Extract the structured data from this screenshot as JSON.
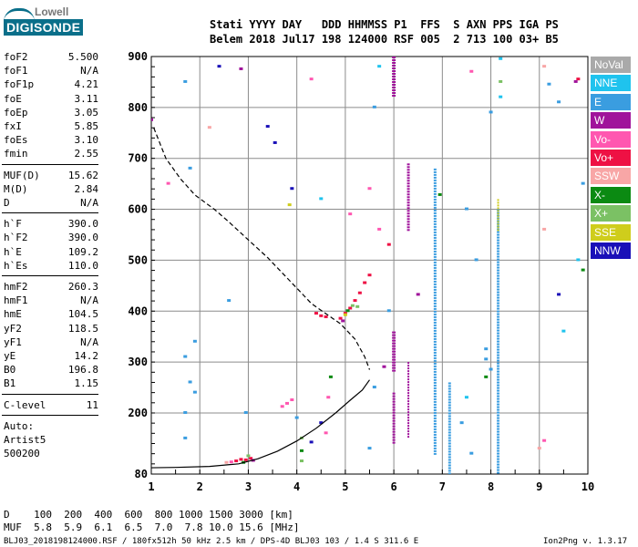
{
  "logo": {
    "line1": "Lowell",
    "line2": "DIGISONDE"
  },
  "header": {
    "line1": "Stati YYYY DAY   DDD HHMMSS P1  FFS  S AXN PPS IGA PS",
    "line2": "Belem 2018 Jul17 198 124000 RSF 005  2 713 100 03+ B5"
  },
  "params": [
    {
      "group": 1,
      "label": "foF2",
      "value": "5.500"
    },
    {
      "group": 1,
      "label": "foF1",
      "value": "N/A"
    },
    {
      "group": 1,
      "label": "foF1p",
      "value": "4.21"
    },
    {
      "group": 1,
      "label": "foE",
      "value": "3.11"
    },
    {
      "group": 1,
      "label": "foEp",
      "value": "3.05"
    },
    {
      "group": 1,
      "label": "fxI",
      "value": "5.85"
    },
    {
      "group": 1,
      "label": "foEs",
      "value": "3.10"
    },
    {
      "group": 1,
      "label": "fmin",
      "value": "2.55"
    },
    {
      "group": 2,
      "label": "MUF(D)",
      "value": "15.62"
    },
    {
      "group": 2,
      "label": "M(D)",
      "value": "2.84"
    },
    {
      "group": 2,
      "label": "D",
      "value": "N/A"
    },
    {
      "group": 3,
      "label": "h`F",
      "value": "390.0"
    },
    {
      "group": 3,
      "label": "h`F2",
      "value": "390.0"
    },
    {
      "group": 3,
      "label": "h`E",
      "value": "109.2"
    },
    {
      "group": 3,
      "label": "h`Es",
      "value": "110.0"
    },
    {
      "group": 4,
      "label": "hmF2",
      "value": "260.3"
    },
    {
      "group": 4,
      "label": "hmF1",
      "value": "N/A"
    },
    {
      "group": 4,
      "label": "hmE",
      "value": "104.5"
    },
    {
      "group": 4,
      "label": "yF2",
      "value": "118.5"
    },
    {
      "group": 4,
      "label": "yF1",
      "value": "N/A"
    },
    {
      "group": 4,
      "label": "yE",
      "value": "14.2"
    },
    {
      "group": 4,
      "label": "B0",
      "value": "196.8"
    },
    {
      "group": 4,
      "label": "B1",
      "value": "1.15"
    },
    {
      "group": 5,
      "label": "C-level",
      "value": "11"
    },
    {
      "group": 6,
      "label": "Auto:",
      "value": ""
    },
    {
      "group": 6,
      "label": "Artist5",
      "value": ""
    },
    {
      "group": 6,
      "label": "500200",
      "value": ""
    }
  ],
  "legend": [
    {
      "label": "NoVal",
      "color": "#a9a9a9"
    },
    {
      "label": "NNE",
      "color": "#1fc3ee"
    },
    {
      "label": "E",
      "color": "#3a9de0"
    },
    {
      "label": "W",
      "color": "#a0139b"
    },
    {
      "label": "Vo-",
      "color": "#ff57b0"
    },
    {
      "label": "Vo+",
      "color": "#ee1144"
    },
    {
      "label": "SSW",
      "color": "#f8a6a6"
    },
    {
      "label": "X-",
      "color": "#0b8a12"
    },
    {
      "label": "X+",
      "color": "#7bc164"
    },
    {
      "label": "SSE",
      "color": "#cfcd1c"
    },
    {
      "label": "NNW",
      "color": "#1a10b8"
    }
  ],
  "bottom": {
    "d_line": "D    100  200  400  600  800 1000 1500 3000 [km]",
    "muf_line": "MUF  5.8  5.9  6.1  6.5  7.0  7.8 10.0 15.6 [MHz]",
    "footer": "BLJ03_2018198124000.RSF / 180fx512h 50 kHz 2.5 km / DPS-4D BLJ03 103 / 1.4 S 311.6 E",
    "version": "Ion2Png v. 1.3.17"
  },
  "chart_data": {
    "type": "scatter",
    "xlabel": "",
    "ylabel": "",
    "xlim": [
      1,
      10
    ],
    "ylim": [
      80,
      900
    ],
    "grid": true,
    "x_ticks": [
      1,
      2,
      3,
      4,
      5,
      6,
      7,
      8,
      9,
      10
    ],
    "x_minor_step": 0.5,
    "y_ticks": [
      80,
      200,
      300,
      400,
      500,
      600,
      700,
      800,
      900
    ],
    "y_minor_step": 20,
    "trace_dashed": [
      [
        1.05,
        760
      ],
      [
        1.3,
        700
      ],
      [
        1.6,
        660
      ],
      [
        1.9,
        628
      ],
      [
        2.3,
        600
      ],
      [
        2.6,
        575
      ],
      [
        3.0,
        540
      ],
      [
        3.4,
        505
      ],
      [
        3.7,
        475
      ],
      [
        4.0,
        445
      ],
      [
        4.3,
        415
      ],
      [
        4.6,
        395
      ],
      [
        4.9,
        375
      ],
      [
        5.2,
        345
      ],
      [
        5.4,
        310
      ],
      [
        5.5,
        285
      ]
    ],
    "trace_solid": [
      [
        0.7,
        92
      ],
      [
        1.5,
        93
      ],
      [
        2.2,
        95
      ],
      [
        2.8,
        100
      ],
      [
        3.2,
        110
      ],
      [
        3.6,
        125
      ],
      [
        4.0,
        145
      ],
      [
        4.4,
        170
      ],
      [
        4.8,
        200
      ],
      [
        5.1,
        225
      ],
      [
        5.35,
        245
      ],
      [
        5.5,
        265
      ]
    ],
    "echo_columns": [
      {
        "x": 6.0,
        "y0": 820,
        "y1": 900,
        "color": "#a0139b",
        "w": 4
      },
      {
        "x": 6.0,
        "y0": 280,
        "y1": 360,
        "color": "#a0139b",
        "w": 4
      },
      {
        "x": 6.0,
        "y0": 140,
        "y1": 240,
        "color": "#a0139b",
        "w": 3
      },
      {
        "x": 6.3,
        "y0": 560,
        "y1": 690,
        "color": "#a0139b",
        "w": 3
      },
      {
        "x": 6.3,
        "y0": 150,
        "y1": 300,
        "color": "#a0139b",
        "w": 2
      },
      {
        "x": 6.85,
        "y0": 120,
        "y1": 680,
        "color": "#3a9de0",
        "w": 3
      },
      {
        "x": 7.15,
        "y0": 80,
        "y1": 260,
        "color": "#3a9de0",
        "w": 3
      },
      {
        "x": 8.15,
        "y0": 80,
        "y1": 600,
        "color": "#3a9de0",
        "w": 3
      },
      {
        "x": 8.15,
        "y0": 560,
        "y1": 620,
        "color": "#cfcd1c",
        "w": 2
      }
    ],
    "echo_points": [
      {
        "x": 2.75,
        "y": 105,
        "c": "#ee1144"
      },
      {
        "x": 2.85,
        "y": 108,
        "c": "#ee1144"
      },
      {
        "x": 2.95,
        "y": 107,
        "c": "#ee1144"
      },
      {
        "x": 2.65,
        "y": 103,
        "c": "#ff57b0"
      },
      {
        "x": 2.55,
        "y": 102,
        "c": "#f8a6a6"
      },
      {
        "x": 3.05,
        "y": 110,
        "c": "#ee1144"
      },
      {
        "x": 3.1,
        "y": 106,
        "c": "#a0139b"
      },
      {
        "x": 2.9,
        "y": 102,
        "c": "#0b8a12"
      },
      {
        "x": 3.0,
        "y": 115,
        "c": "#7bc164"
      },
      {
        "x": 3.7,
        "y": 212,
        "c": "#ff57b0"
      },
      {
        "x": 3.8,
        "y": 218,
        "c": "#ff57b0"
      },
      {
        "x": 3.9,
        "y": 225,
        "c": "#ff57b0"
      },
      {
        "x": 4.4,
        "y": 395,
        "c": "#ee1144"
      },
      {
        "x": 4.5,
        "y": 390,
        "c": "#ee1144"
      },
      {
        "x": 4.6,
        "y": 388,
        "c": "#ee1144"
      },
      {
        "x": 4.9,
        "y": 385,
        "c": "#ee1144"
      },
      {
        "x": 5.0,
        "y": 395,
        "c": "#ee1144"
      },
      {
        "x": 5.1,
        "y": 405,
        "c": "#ee1144"
      },
      {
        "x": 5.2,
        "y": 420,
        "c": "#ee1144"
      },
      {
        "x": 5.3,
        "y": 435,
        "c": "#ee1144"
      },
      {
        "x": 5.4,
        "y": 455,
        "c": "#ee1144"
      },
      {
        "x": 5.5,
        "y": 470,
        "c": "#ee1144"
      },
      {
        "x": 5.05,
        "y": 400,
        "c": "#0b8a12"
      },
      {
        "x": 5.15,
        "y": 410,
        "c": "#7bc164"
      },
      {
        "x": 5.25,
        "y": 408,
        "c": "#7bc164"
      },
      {
        "x": 5.0,
        "y": 392,
        "c": "#cfcd1c"
      },
      {
        "x": 4.95,
        "y": 380,
        "c": "#a0139b"
      },
      {
        "x": 6.5,
        "y": 432,
        "c": "#a0139b"
      },
      {
        "x": 6.95,
        "y": 628,
        "c": "#0b8a12"
      },
      {
        "x": 9.8,
        "y": 855,
        "c": "#ee1144"
      },
      {
        "x": 9.75,
        "y": 850,
        "c": "#a0139b"
      },
      {
        "x": 3.4,
        "y": 762,
        "c": "#1a10b8"
      },
      {
        "x": 3.55,
        "y": 730,
        "c": "#1a10b8"
      },
      {
        "x": 2.4,
        "y": 880,
        "c": "#1a10b8"
      },
      {
        "x": 2.85,
        "y": 875,
        "c": "#a0139b"
      },
      {
        "x": 3.85,
        "y": 608,
        "c": "#cfcd1c"
      },
      {
        "x": 3.9,
        "y": 640,
        "c": "#1a10b8"
      },
      {
        "x": 9.4,
        "y": 432,
        "c": "#1a10b8"
      },
      {
        "x": 9.9,
        "y": 480,
        "c": "#0b8a12"
      },
      {
        "x": 1.0,
        "y": 775,
        "c": "#a0139b"
      },
      {
        "x": 1.35,
        "y": 650,
        "c": "#ff57b0"
      },
      {
        "x": 2.2,
        "y": 760,
        "c": "#f8a6a6"
      },
      {
        "x": 1.7,
        "y": 850,
        "c": "#3a9de0"
      },
      {
        "x": 1.8,
        "y": 680,
        "c": "#3a9de0"
      },
      {
        "x": 1.9,
        "y": 340,
        "c": "#3a9de0"
      },
      {
        "x": 1.7,
        "y": 310,
        "c": "#3a9de0"
      },
      {
        "x": 1.8,
        "y": 260,
        "c": "#3a9de0"
      },
      {
        "x": 1.9,
        "y": 240,
        "c": "#3a9de0"
      },
      {
        "x": 1.7,
        "y": 200,
        "c": "#3a9de0"
      },
      {
        "x": 1.7,
        "y": 150,
        "c": "#3a9de0"
      },
      {
        "x": 2.6,
        "y": 420,
        "c": "#3a9de0"
      },
      {
        "x": 2.95,
        "y": 200,
        "c": "#3a9de0"
      },
      {
        "x": 4.3,
        "y": 855,
        "c": "#ff57b0"
      },
      {
        "x": 4.5,
        "y": 620,
        "c": "#1fc3ee"
      },
      {
        "x": 5.1,
        "y": 590,
        "c": "#ff57b0"
      },
      {
        "x": 5.5,
        "y": 640,
        "c": "#ff57b0"
      },
      {
        "x": 5.7,
        "y": 560,
        "c": "#ff57b0"
      },
      {
        "x": 5.9,
        "y": 530,
        "c": "#ee1144"
      },
      {
        "x": 5.6,
        "y": 800,
        "c": "#3a9de0"
      },
      {
        "x": 5.7,
        "y": 880,
        "c": "#1fc3ee"
      },
      {
        "x": 5.9,
        "y": 400,
        "c": "#3a9de0"
      },
      {
        "x": 5.8,
        "y": 290,
        "c": "#a0139b"
      },
      {
        "x": 5.6,
        "y": 250,
        "c": "#3a9de0"
      },
      {
        "x": 5.5,
        "y": 130,
        "c": "#3a9de0"
      },
      {
        "x": 7.6,
        "y": 870,
        "c": "#ff57b0"
      },
      {
        "x": 7.5,
        "y": 600,
        "c": "#3a9de0"
      },
      {
        "x": 7.7,
        "y": 500,
        "c": "#3a9de0"
      },
      {
        "x": 7.9,
        "y": 325,
        "c": "#3a9de0"
      },
      {
        "x": 7.9,
        "y": 305,
        "c": "#3a9de0"
      },
      {
        "x": 8.0,
        "y": 285,
        "c": "#3a9de0"
      },
      {
        "x": 7.9,
        "y": 270,
        "c": "#0b8a12"
      },
      {
        "x": 7.5,
        "y": 230,
        "c": "#1fc3ee"
      },
      {
        "x": 7.4,
        "y": 180,
        "c": "#3a9de0"
      },
      {
        "x": 7.6,
        "y": 120,
        "c": "#3a9de0"
      },
      {
        "x": 8.2,
        "y": 895,
        "c": "#1fc3ee"
      },
      {
        "x": 8.2,
        "y": 850,
        "c": "#7bc164"
      },
      {
        "x": 8.2,
        "y": 820,
        "c": "#1fc3ee"
      },
      {
        "x": 8.0,
        "y": 790,
        "c": "#3a9de0"
      },
      {
        "x": 9.1,
        "y": 880,
        "c": "#f8a6a6"
      },
      {
        "x": 9.2,
        "y": 845,
        "c": "#3a9de0"
      },
      {
        "x": 9.4,
        "y": 810,
        "c": "#3a9de0"
      },
      {
        "x": 9.9,
        "y": 650,
        "c": "#3a9de0"
      },
      {
        "x": 9.1,
        "y": 560,
        "c": "#f8a6a6"
      },
      {
        "x": 9.8,
        "y": 500,
        "c": "#1fc3ee"
      },
      {
        "x": 9.5,
        "y": 360,
        "c": "#1fc3ee"
      },
      {
        "x": 9.0,
        "y": 130,
        "c": "#f8a6a6"
      },
      {
        "x": 9.1,
        "y": 145,
        "c": "#ff57b0"
      },
      {
        "x": 4.0,
        "y": 190,
        "c": "#3a9de0"
      },
      {
        "x": 4.1,
        "y": 125,
        "c": "#0b8a12"
      },
      {
        "x": 4.1,
        "y": 105,
        "c": "#7bc164"
      },
      {
        "x": 4.1,
        "y": 150,
        "c": "#7bc164"
      },
      {
        "x": 4.3,
        "y": 142,
        "c": "#1a10b8"
      },
      {
        "x": 4.7,
        "y": 270,
        "c": "#0b8a12"
      },
      {
        "x": 4.65,
        "y": 230,
        "c": "#ff57b0"
      },
      {
        "x": 4.6,
        "y": 160,
        "c": "#ff57b0"
      },
      {
        "x": 4.5,
        "y": 180,
        "c": "#1a10b8"
      }
    ]
  }
}
